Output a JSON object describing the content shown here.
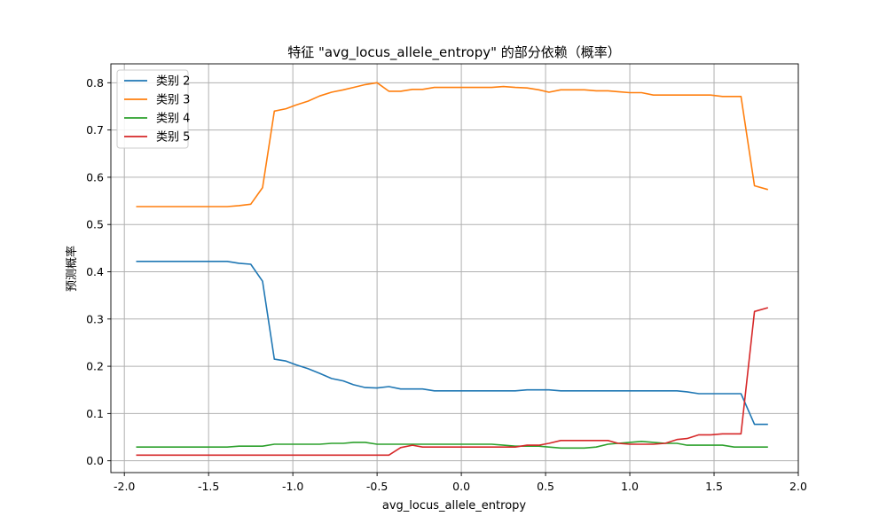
{
  "chart_data": {
    "type": "line",
    "title": "特征 \"avg_locus_allele_entropy\" 的部分依赖（概率）",
    "xlabel": "avg_locus_allele_entropy",
    "ylabel": "预测概率",
    "xlim": [
      -2.08,
      2.0
    ],
    "ylim": [
      -0.025,
      0.84
    ],
    "x_ticks": [
      -2.0,
      -1.5,
      -1.0,
      -0.5,
      0.0,
      0.5,
      1.0,
      1.5,
      2.0
    ],
    "x_tick_labels": [
      "-2.0",
      "-1.5",
      "-1.0",
      "-0.5",
      "0.0",
      "0.5",
      "1.0",
      "1.5",
      "2.0"
    ],
    "y_ticks": [
      0.0,
      0.1,
      0.2,
      0.3,
      0.4,
      0.5,
      0.6,
      0.7,
      0.8
    ],
    "y_tick_labels": [
      "0.0",
      "0.1",
      "0.2",
      "0.3",
      "0.4",
      "0.5",
      "0.6",
      "0.7",
      "0.8"
    ],
    "grid": true,
    "legend_position": "top-left",
    "x": [
      -1.93,
      -1.86,
      -1.79,
      -1.72,
      -1.66,
      -1.59,
      -1.52,
      -1.45,
      -1.39,
      -1.32,
      -1.25,
      -1.18,
      -1.11,
      -1.04,
      -0.98,
      -0.91,
      -0.84,
      -0.77,
      -0.7,
      -0.64,
      -0.57,
      -0.5,
      -0.43,
      -0.36,
      -0.29,
      -0.23,
      -0.16,
      -0.09,
      -0.02,
      0.05,
      0.12,
      0.18,
      0.25,
      0.32,
      0.39,
      0.46,
      0.52,
      0.59,
      0.66,
      0.73,
      0.8,
      0.87,
      0.93,
      1.0,
      1.07,
      1.14,
      1.21,
      1.28,
      1.34,
      1.41,
      1.48,
      1.55,
      1.62,
      1.66,
      1.74,
      1.82
    ],
    "series": [
      {
        "name": "类别 2",
        "color": "#1f77b4",
        "values": [
          0.422,
          0.422,
          0.422,
          0.422,
          0.422,
          0.422,
          0.422,
          0.422,
          0.422,
          0.418,
          0.416,
          0.38,
          0.215,
          0.211,
          0.203,
          0.195,
          0.185,
          0.174,
          0.169,
          0.161,
          0.155,
          0.154,
          0.157,
          0.152,
          0.152,
          0.152,
          0.148,
          0.148,
          0.148,
          0.148,
          0.148,
          0.148,
          0.148,
          0.148,
          0.15,
          0.15,
          0.15,
          0.148,
          0.148,
          0.148,
          0.148,
          0.148,
          0.148,
          0.148,
          0.148,
          0.148,
          0.148,
          0.148,
          0.146,
          0.142,
          0.142,
          0.142,
          0.142,
          0.142,
          0.077,
          0.077
        ]
      },
      {
        "name": "类别 3",
        "color": "#ff7f0e",
        "values": [
          0.538,
          0.538,
          0.538,
          0.538,
          0.538,
          0.538,
          0.538,
          0.538,
          0.538,
          0.54,
          0.543,
          0.578,
          0.74,
          0.745,
          0.753,
          0.761,
          0.772,
          0.78,
          0.785,
          0.79,
          0.796,
          0.8,
          0.782,
          0.782,
          0.786,
          0.786,
          0.79,
          0.79,
          0.79,
          0.79,
          0.79,
          0.79,
          0.792,
          0.79,
          0.789,
          0.785,
          0.78,
          0.785,
          0.785,
          0.785,
          0.783,
          0.783,
          0.781,
          0.779,
          0.779,
          0.774,
          0.774,
          0.774,
          0.774,
          0.774,
          0.774,
          0.771,
          0.771,
          0.771,
          0.582,
          0.574
        ]
      },
      {
        "name": "类别 4",
        "color": "#2ca02c",
        "values": [
          0.029,
          0.029,
          0.029,
          0.029,
          0.029,
          0.029,
          0.029,
          0.029,
          0.029,
          0.031,
          0.031,
          0.031,
          0.035,
          0.035,
          0.035,
          0.035,
          0.035,
          0.037,
          0.037,
          0.039,
          0.039,
          0.035,
          0.035,
          0.035,
          0.035,
          0.035,
          0.035,
          0.035,
          0.035,
          0.035,
          0.035,
          0.035,
          0.033,
          0.031,
          0.031,
          0.031,
          0.029,
          0.027,
          0.027,
          0.027,
          0.029,
          0.035,
          0.037,
          0.039,
          0.041,
          0.039,
          0.037,
          0.037,
          0.033,
          0.033,
          0.033,
          0.033,
          0.029,
          0.029,
          0.029,
          0.029
        ]
      },
      {
        "name": "类别 5",
        "color": "#d62728",
        "values": [
          0.012,
          0.012,
          0.012,
          0.012,
          0.012,
          0.012,
          0.012,
          0.012,
          0.012,
          0.012,
          0.012,
          0.012,
          0.012,
          0.012,
          0.012,
          0.012,
          0.012,
          0.012,
          0.012,
          0.012,
          0.012,
          0.012,
          0.012,
          0.028,
          0.033,
          0.029,
          0.029,
          0.029,
          0.029,
          0.029,
          0.029,
          0.029,
          0.029,
          0.029,
          0.033,
          0.033,
          0.037,
          0.043,
          0.043,
          0.043,
          0.043,
          0.043,
          0.037,
          0.035,
          0.035,
          0.035,
          0.037,
          0.045,
          0.047,
          0.055,
          0.055,
          0.057,
          0.057,
          0.057,
          0.316,
          0.324
        ]
      }
    ]
  }
}
